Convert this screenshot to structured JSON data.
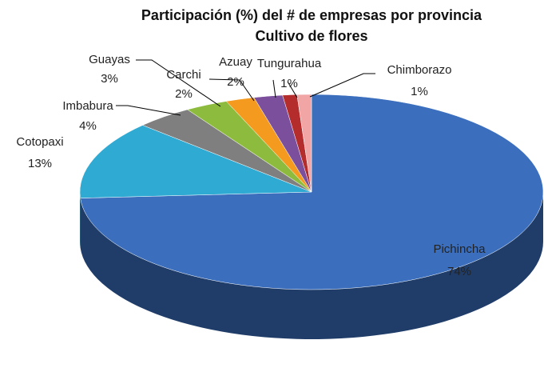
{
  "chart_data": {
    "type": "pie3d",
    "title": "Participación (%) del # de empresas por provincia",
    "subtitle": "Cultivo de flores",
    "categories": [
      "Pichincha",
      "Cotopaxi",
      "Imbabura",
      "Guayas",
      "Carchi",
      "Azuay",
      "Tungurahua",
      "Chimborazo"
    ],
    "values": [
      74,
      13,
      4,
      3,
      2,
      2,
      1,
      1
    ],
    "value_labels": [
      "74%",
      "13%",
      "4%",
      "3%",
      "2%",
      "2%",
      "1%",
      "1%"
    ],
    "colors": [
      "#3b6fbe",
      "#2faad2",
      "#7f7f7f",
      "#8dbb3e",
      "#f39a1f",
      "#7b4f9c",
      "#b42c2c",
      "#f2a5a5"
    ]
  }
}
